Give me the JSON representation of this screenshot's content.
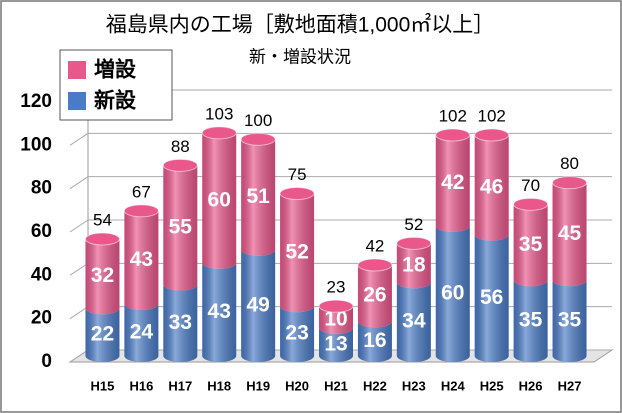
{
  "chart_data": {
    "type": "bar",
    "stacked": true,
    "title": "福島県内の工場［敷地面積1,000㎡以上］",
    "subtitle": "新・増設状況",
    "categories": [
      "H15",
      "H16",
      "H17",
      "H18",
      "H19",
      "H20",
      "H21",
      "H22",
      "H23",
      "H24",
      "H25",
      "H26",
      "H27"
    ],
    "series": [
      {
        "name": "新設",
        "color": "#4a7bc6",
        "values": [
          22,
          24,
          33,
          43,
          49,
          23,
          13,
          16,
          34,
          60,
          56,
          35,
          35
        ]
      },
      {
        "name": "増設",
        "color": "#e9578b",
        "values": [
          32,
          43,
          55,
          60,
          51,
          52,
          10,
          26,
          18,
          42,
          46,
          35,
          45
        ]
      }
    ],
    "totals": [
      54,
      67,
      88,
      103,
      100,
      75,
      23,
      42,
      52,
      102,
      102,
      70,
      80
    ],
    "ylim": [
      0,
      120
    ],
    "yticks": [
      0,
      20,
      40,
      60,
      80,
      100,
      120
    ],
    "grid": true,
    "legend": "top-left"
  }
}
